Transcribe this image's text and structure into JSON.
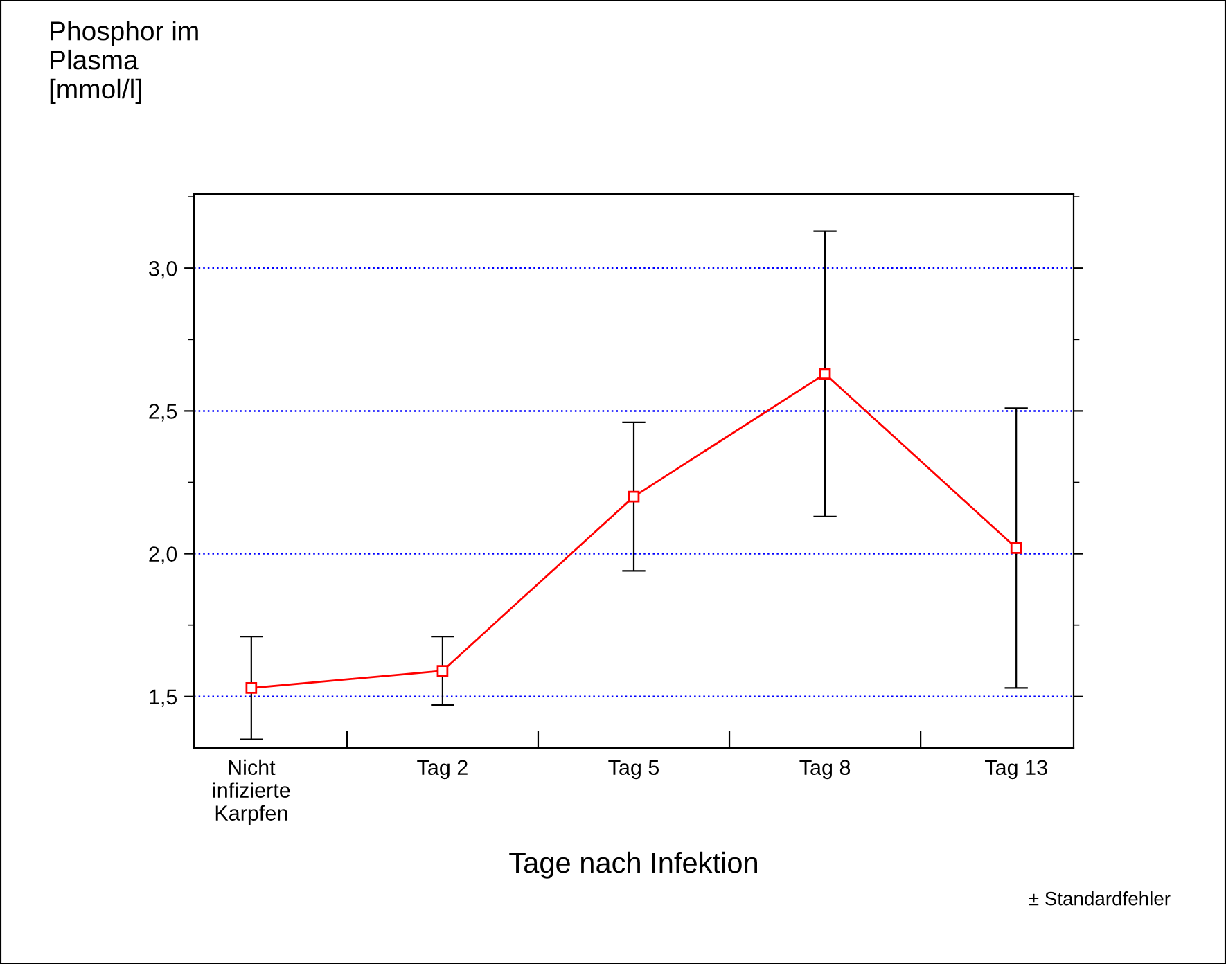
{
  "chart_data": {
    "type": "line",
    "ylabel": "Phosphor im\nPlasma\n[mmol/l]",
    "xlabel": "Tage nach Infektion",
    "categories": [
      "Nicht\ninfizierte\nKarpfen",
      "Tag 2",
      "Tag 5",
      "Tag 8",
      "Tag 13"
    ],
    "series": [
      {
        "color": "#ff0000",
        "values": [
          1.53,
          1.59,
          2.2,
          2.63,
          2.02
        ],
        "errors": [
          0.18,
          0.12,
          0.26,
          0.5,
          0.49
        ]
      }
    ],
    "ylim": [
      1.32,
      3.26
    ],
    "yticks": [
      {
        "value": 1.5,
        "label": "1,5"
      },
      {
        "value": 2.0,
        "label": "2,0"
      },
      {
        "value": 2.5,
        "label": "2,5"
      },
      {
        "value": 3.0,
        "label": "3,0"
      }
    ],
    "grid": "y",
    "marker": "square",
    "line_style": "solid",
    "legend": false,
    "annotations": [
      "± Standardfehler"
    ]
  }
}
